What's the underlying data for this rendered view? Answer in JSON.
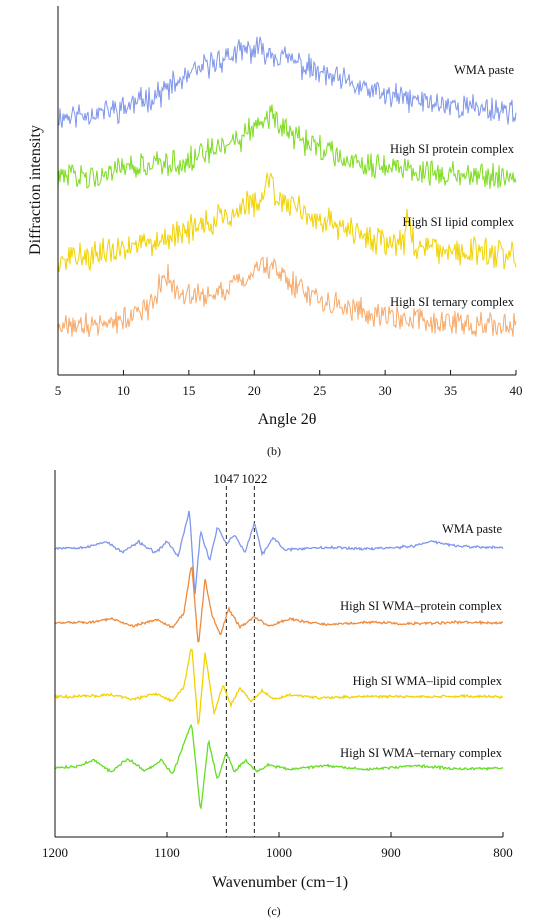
{
  "chart_data": [
    {
      "type": "line",
      "panel_label": "(b)",
      "xlabel": "Angle 2θ",
      "ylabel": "Diffraction intensity",
      "xlim": [
        5,
        40
      ],
      "x_ticks": [
        5,
        10,
        15,
        20,
        25,
        30,
        35,
        40
      ],
      "y_ticks_labeled": false,
      "grid": false,
      "series": [
        {
          "name": "WMA paste",
          "color": "#7f96ea",
          "x": [
            5,
            8,
            10,
            13,
            15,
            17,
            19,
            20,
            21,
            23,
            25,
            28,
            30,
            33,
            35,
            38,
            40
          ],
          "y": [
            0.0,
            0.05,
            0.1,
            0.28,
            0.45,
            0.62,
            0.72,
            0.75,
            0.73,
            0.62,
            0.48,
            0.33,
            0.24,
            0.17,
            0.13,
            0.09,
            0.07
          ]
        },
        {
          "name": "High SI protein complex",
          "color": "#7ddc1f",
          "x": [
            5,
            8,
            10,
            12,
            13,
            13.5,
            15,
            17,
            19,
            20.5,
            21,
            21.5,
            22,
            24,
            26,
            28,
            30,
            33,
            35,
            38,
            40
          ],
          "y": [
            0.0,
            0.05,
            0.08,
            0.13,
            0.18,
            0.16,
            0.2,
            0.3,
            0.45,
            0.62,
            0.72,
            0.65,
            0.55,
            0.4,
            0.27,
            0.18,
            0.13,
            0.07,
            0.05,
            0.03,
            0.02
          ]
        },
        {
          "name": "High SI lipid complex",
          "color": "#f2d200",
          "x": [
            5,
            8,
            10,
            13,
            15,
            17,
            19,
            20.5,
            21.3,
            21.6,
            22,
            24,
            26,
            28,
            30,
            31.5,
            31.7,
            32,
            33,
            35,
            38,
            40
          ],
          "y": [
            0.0,
            0.08,
            0.15,
            0.25,
            0.33,
            0.42,
            0.55,
            0.62,
            0.95,
            0.7,
            0.6,
            0.48,
            0.38,
            0.28,
            0.2,
            0.2,
            0.55,
            0.22,
            0.16,
            0.12,
            0.08,
            0.06
          ]
        },
        {
          "name": "High SI ternary complex",
          "color": "#f7aa6b",
          "x": [
            5,
            8,
            10,
            12,
            13,
            13.3,
            14,
            15,
            17,
            19,
            20.5,
            21.5,
            23,
            25,
            28,
            30,
            33,
            35,
            38,
            40
          ],
          "y": [
            0.0,
            0.06,
            0.1,
            0.25,
            0.55,
            0.6,
            0.42,
            0.38,
            0.42,
            0.55,
            0.72,
            0.65,
            0.5,
            0.35,
            0.22,
            0.15,
            0.1,
            0.08,
            0.05,
            0.03
          ]
        }
      ]
    },
    {
      "type": "line",
      "panel_label": "(c)",
      "xlabel": "Wavenumber (cm−1)",
      "ylabel": "",
      "xlim": [
        1200,
        800
      ],
      "x_ticks": [
        1200,
        1100,
        1000,
        900,
        800
      ],
      "y_ticks_labeled": false,
      "grid": false,
      "reference_lines": [
        {
          "x": 1047,
          "label": "1047",
          "style": "dashed"
        },
        {
          "x": 1022,
          "label": "1022",
          "style": "dashed"
        }
      ],
      "series": [
        {
          "name": "WMA paste",
          "color": "#7f96ea",
          "x": [
            1200,
            1170,
            1155,
            1140,
            1125,
            1110,
            1100,
            1090,
            1080,
            1075,
            1070,
            1062,
            1055,
            1047,
            1040,
            1030,
            1022,
            1015,
            1005,
            995,
            960,
            920,
            880,
            865,
            840,
            800
          ],
          "y": [
            0.0,
            0.01,
            0.08,
            -0.05,
            0.07,
            -0.06,
            0.08,
            -0.1,
            0.45,
            -0.55,
            0.2,
            -0.15,
            0.25,
            0.05,
            0.15,
            -0.05,
            0.3,
            -0.08,
            0.12,
            -0.02,
            0.01,
            -0.01,
            0.02,
            0.08,
            0.02,
            0.0
          ]
        },
        {
          "name": "High SI WMA–protein complex",
          "color": "#f08a3a",
          "x": [
            1200,
            1170,
            1150,
            1130,
            1110,
            1095,
            1085,
            1078,
            1072,
            1066,
            1060,
            1052,
            1045,
            1035,
            1022,
            1010,
            990,
            960,
            920,
            880,
            840,
            800
          ],
          "y": [
            0.0,
            0.01,
            0.05,
            -0.04,
            0.05,
            -0.06,
            0.12,
            0.75,
            -0.3,
            0.55,
            0.1,
            -0.15,
            0.18,
            -0.05,
            0.08,
            -0.04,
            0.05,
            -0.02,
            0.01,
            -0.01,
            0.01,
            0.0
          ]
        },
        {
          "name": "High SI WMA–lipid complex",
          "color": "#f2d200",
          "x": [
            1200,
            1170,
            1150,
            1130,
            1110,
            1095,
            1085,
            1078,
            1072,
            1066,
            1058,
            1050,
            1043,
            1035,
            1025,
            1015,
            1005,
            990,
            960,
            920,
            880,
            840,
            800
          ],
          "y": [
            0.0,
            0.01,
            0.03,
            -0.03,
            0.04,
            -0.05,
            0.12,
            0.65,
            -0.4,
            0.55,
            -0.2,
            0.15,
            -0.1,
            0.12,
            -0.06,
            0.08,
            -0.03,
            0.02,
            -0.01,
            0.01,
            0.0,
            0.01,
            0.0
          ]
        },
        {
          "name": "High SI WMA–ternary complex",
          "color": "#66dd22",
          "x": [
            1200,
            1180,
            1165,
            1150,
            1135,
            1120,
            1105,
            1095,
            1085,
            1078,
            1070,
            1063,
            1055,
            1047,
            1040,
            1030,
            1020,
            1010,
            990,
            960,
            920,
            880,
            840,
            800
          ],
          "y": [
            0.0,
            0.02,
            0.1,
            -0.05,
            0.12,
            -0.04,
            0.1,
            -0.08,
            0.3,
            0.55,
            -0.55,
            0.35,
            -0.15,
            0.2,
            -0.05,
            0.1,
            -0.04,
            0.04,
            -0.02,
            0.03,
            -0.02,
            0.03,
            -0.01,
            0.0
          ]
        }
      ]
    }
  ]
}
